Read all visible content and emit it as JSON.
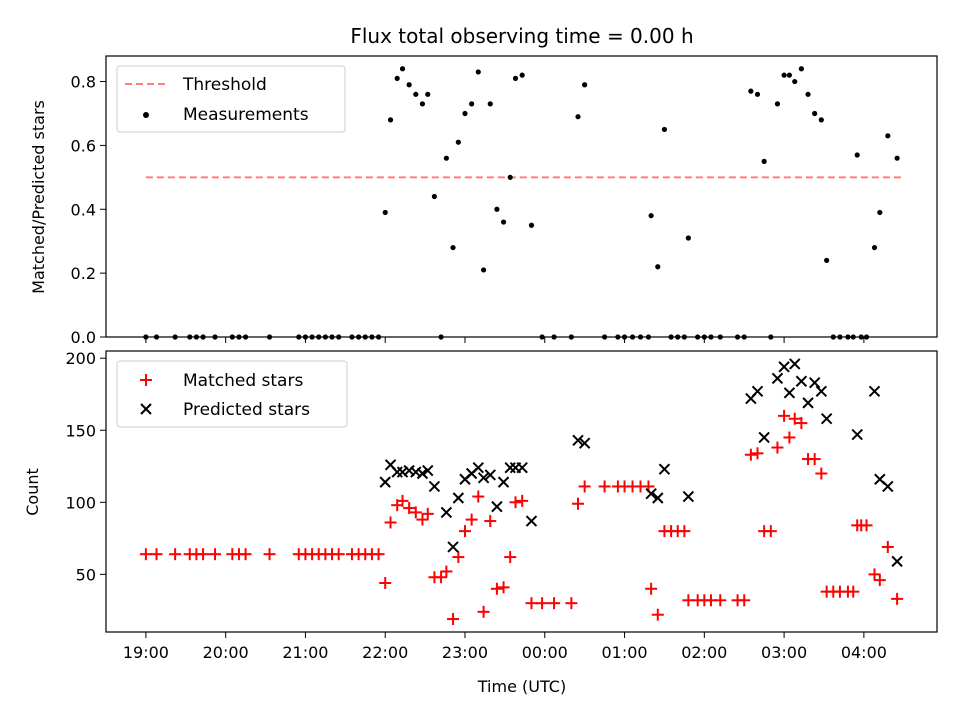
{
  "figure": {
    "title": "Flux total observing time = 0.00 h",
    "xlabel": "Time (UTC)"
  },
  "chart_data": [
    {
      "type": "scatter",
      "title": "Flux total observing time = 0.00 h",
      "xlabel": "Time (UTC)",
      "ylabel": "Matched/Predicted stars",
      "xlim": [
        "18:30",
        "04:55"
      ],
      "ylim": [
        0,
        0.88
      ],
      "x_ticks": [
        "19:00",
        "20:00",
        "21:00",
        "22:00",
        "23:00",
        "00:00",
        "01:00",
        "02:00",
        "03:00",
        "04:00"
      ],
      "y_ticks": [
        "0.0",
        "0.2",
        "0.4",
        "0.6",
        "0.8"
      ],
      "legend": "top-left",
      "series": [
        {
          "name": "Threshold",
          "kind": "dashed-line",
          "color": "#ff7f7f",
          "points": [
            [
              "19:00",
              0.5
            ],
            [
              "04:30",
              0.5
            ]
          ]
        },
        {
          "name": "Measurements",
          "kind": "dots",
          "color": "#000000",
          "points": [
            [
              "19:00",
              0
            ],
            [
              "19:08",
              0
            ],
            [
              "19:22",
              0
            ],
            [
              "19:33",
              0
            ],
            [
              "19:38",
              0
            ],
            [
              "19:43",
              0
            ],
            [
              "19:52",
              0
            ],
            [
              "20:05",
              0
            ],
            [
              "20:10",
              0
            ],
            [
              "20:15",
              0
            ],
            [
              "20:33",
              0
            ],
            [
              "20:55",
              0
            ],
            [
              "21:00",
              0
            ],
            [
              "21:05",
              0
            ],
            [
              "21:10",
              0
            ],
            [
              "21:15",
              0
            ],
            [
              "21:20",
              0
            ],
            [
              "21:25",
              0
            ],
            [
              "21:35",
              0
            ],
            [
              "21:40",
              0
            ],
            [
              "21:45",
              0
            ],
            [
              "21:50",
              0
            ],
            [
              "21:55",
              0
            ],
            [
              "22:00",
              0.39
            ],
            [
              "22:04",
              0.68
            ],
            [
              "22:09",
              0.81
            ],
            [
              "22:13",
              0.84
            ],
            [
              "22:18",
              0.79
            ],
            [
              "22:23",
              0.76
            ],
            [
              "22:28",
              0.73
            ],
            [
              "22:32",
              0.76
            ],
            [
              "22:37",
              0.44
            ],
            [
              "22:42",
              0
            ],
            [
              "22:46",
              0.56
            ],
            [
              "22:51",
              0.28
            ],
            [
              "22:55",
              0.61
            ],
            [
              "23:00",
              0.7
            ],
            [
              "23:05",
              0.73
            ],
            [
              "23:10",
              0.83
            ],
            [
              "23:14",
              0.21
            ],
            [
              "23:19",
              0.73
            ],
            [
              "23:24",
              0.4
            ],
            [
              "23:29",
              0.36
            ],
            [
              "23:34",
              0.5
            ],
            [
              "23:38",
              0.81
            ],
            [
              "23:43",
              0.82
            ],
            [
              "23:50",
              0.35
            ],
            [
              "23:58",
              0
            ],
            [
              "00:07",
              0
            ],
            [
              "00:20",
              0
            ],
            [
              "00:25",
              0.69
            ],
            [
              "00:30",
              0.79
            ],
            [
              "00:45",
              0
            ],
            [
              "00:55",
              0
            ],
            [
              "01:00",
              0
            ],
            [
              "01:06",
              0
            ],
            [
              "01:12",
              0
            ],
            [
              "01:18",
              0
            ],
            [
              "01:20",
              0.38
            ],
            [
              "01:25",
              0.22
            ],
            [
              "01:30",
              0.65
            ],
            [
              "01:35",
              0
            ],
            [
              "01:40",
              0
            ],
            [
              "01:45",
              0
            ],
            [
              "01:48",
              0.31
            ],
            [
              "01:55",
              0
            ],
            [
              "02:00",
              0
            ],
            [
              "02:05",
              0
            ],
            [
              "02:12",
              0
            ],
            [
              "02:25",
              0
            ],
            [
              "02:30",
              0
            ],
            [
              "02:35",
              0.77
            ],
            [
              "02:40",
              0.76
            ],
            [
              "02:45",
              0.55
            ],
            [
              "02:50",
              0
            ],
            [
              "02:55",
              0.73
            ],
            [
              "03:00",
              0.82
            ],
            [
              "03:04",
              0.82
            ],
            [
              "03:08",
              0.8
            ],
            [
              "03:13",
              0.84
            ],
            [
              "03:18",
              0.76
            ],
            [
              "03:23",
              0.7
            ],
            [
              "03:28",
              0.68
            ],
            [
              "03:32",
              0.24
            ],
            [
              "03:37",
              0
            ],
            [
              "03:42",
              0
            ],
            [
              "03:48",
              0
            ],
            [
              "03:52",
              0
            ],
            [
              "03:55",
              0.57
            ],
            [
              "03:58",
              0
            ],
            [
              "04:02",
              0
            ],
            [
              "04:08",
              0.28
            ],
            [
              "04:12",
              0.39
            ],
            [
              "04:18",
              0.63
            ],
            [
              "04:25",
              0.56
            ]
          ]
        }
      ]
    },
    {
      "type": "scatter",
      "xlabel": "Time (UTC)",
      "ylabel": "Count",
      "xlim": [
        "18:30",
        "04:55"
      ],
      "ylim": [
        10,
        205
      ],
      "x_ticks": [
        "19:00",
        "20:00",
        "21:00",
        "22:00",
        "23:00",
        "00:00",
        "01:00",
        "02:00",
        "03:00",
        "04:00"
      ],
      "y_ticks": [
        "50",
        "100",
        "150",
        "200"
      ],
      "legend": "top-left",
      "series": [
        {
          "name": "Matched stars",
          "marker": "plus",
          "color": "#ff0000",
          "points": [
            [
              "19:00",
              64
            ],
            [
              "19:08",
              64
            ],
            [
              "19:22",
              64
            ],
            [
              "19:33",
              64
            ],
            [
              "19:38",
              64
            ],
            [
              "19:43",
              64
            ],
            [
              "19:52",
              64
            ],
            [
              "20:05",
              64
            ],
            [
              "20:10",
              64
            ],
            [
              "20:15",
              64
            ],
            [
              "20:33",
              64
            ],
            [
              "20:55",
              64
            ],
            [
              "21:00",
              64
            ],
            [
              "21:05",
              64
            ],
            [
              "21:10",
              64
            ],
            [
              "21:15",
              64
            ],
            [
              "21:20",
              64
            ],
            [
              "21:25",
              64
            ],
            [
              "21:35",
              64
            ],
            [
              "21:40",
              64
            ],
            [
              "21:45",
              64
            ],
            [
              "21:50",
              64
            ],
            [
              "21:55",
              64
            ],
            [
              "22:00",
              44
            ],
            [
              "22:04",
              86
            ],
            [
              "22:09",
              98
            ],
            [
              "22:13",
              101
            ],
            [
              "22:18",
              96
            ],
            [
              "22:23",
              93
            ],
            [
              "22:28",
              88
            ],
            [
              "22:32",
              92
            ],
            [
              "22:37",
              48
            ],
            [
              "22:42",
              48
            ],
            [
              "22:46",
              52
            ],
            [
              "22:51",
              19
            ],
            [
              "22:55",
              62
            ],
            [
              "23:00",
              80
            ],
            [
              "23:05",
              88
            ],
            [
              "23:10",
              104
            ],
            [
              "23:14",
              24
            ],
            [
              "23:19",
              87
            ],
            [
              "23:24",
              40
            ],
            [
              "23:29",
              41
            ],
            [
              "23:34",
              62
            ],
            [
              "23:38",
              100
            ],
            [
              "23:43",
              101
            ],
            [
              "23:50",
              30
            ],
            [
              "23:58",
              30
            ],
            [
              "00:07",
              30
            ],
            [
              "00:20",
              30
            ],
            [
              "00:25",
              99
            ],
            [
              "00:30",
              111
            ],
            [
              "00:45",
              111
            ],
            [
              "00:55",
              111
            ],
            [
              "01:00",
              111
            ],
            [
              "01:06",
              111
            ],
            [
              "01:12",
              111
            ],
            [
              "01:18",
              111
            ],
            [
              "01:20",
              40
            ],
            [
              "01:25",
              22
            ],
            [
              "01:30",
              80
            ],
            [
              "01:35",
              80
            ],
            [
              "01:40",
              80
            ],
            [
              "01:45",
              80
            ],
            [
              "01:48",
              32
            ],
            [
              "01:55",
              32
            ],
            [
              "02:00",
              32
            ],
            [
              "02:05",
              32
            ],
            [
              "02:12",
              32
            ],
            [
              "02:25",
              32
            ],
            [
              "02:30",
              32
            ],
            [
              "02:35",
              133
            ],
            [
              "02:40",
              134
            ],
            [
              "02:45",
              80
            ],
            [
              "02:50",
              80
            ],
            [
              "02:55",
              138
            ],
            [
              "03:00",
              160
            ],
            [
              "03:04",
              145
            ],
            [
              "03:08",
              158
            ],
            [
              "03:13",
              155
            ],
            [
              "03:18",
              130
            ],
            [
              "03:23",
              130
            ],
            [
              "03:28",
              120
            ],
            [
              "03:32",
              38
            ],
            [
              "03:37",
              38
            ],
            [
              "03:42",
              38
            ],
            [
              "03:48",
              38
            ],
            [
              "03:52",
              38
            ],
            [
              "03:55",
              84
            ],
            [
              "03:58",
              84
            ],
            [
              "04:02",
              84
            ],
            [
              "04:08",
              50
            ],
            [
              "04:12",
              46
            ],
            [
              "04:18",
              69
            ],
            [
              "04:25",
              33
            ]
          ]
        },
        {
          "name": "Predicted stars",
          "marker": "x",
          "color": "#000000",
          "points": [
            [
              "22:00",
              114
            ],
            [
              "22:04",
              126
            ],
            [
              "22:09",
              121
            ],
            [
              "22:13",
              121
            ],
            [
              "22:18",
              122
            ],
            [
              "22:23",
              121
            ],
            [
              "22:28",
              120
            ],
            [
              "22:32",
              122
            ],
            [
              "22:37",
              111
            ],
            [
              "22:46",
              93
            ],
            [
              "22:51",
              69
            ],
            [
              "22:55",
              103
            ],
            [
              "23:00",
              116
            ],
            [
              "23:05",
              120
            ],
            [
              "23:10",
              124
            ],
            [
              "23:14",
              117
            ],
            [
              "23:19",
              119
            ],
            [
              "23:24",
              97
            ],
            [
              "23:29",
              114
            ],
            [
              "23:34",
              124
            ],
            [
              "23:38",
              124
            ],
            [
              "23:43",
              124
            ],
            [
              "23:50",
              87
            ],
            [
              "00:25",
              143
            ],
            [
              "00:30",
              141
            ],
            [
              "01:20",
              106
            ],
            [
              "01:25",
              103
            ],
            [
              "01:30",
              123
            ],
            [
              "01:48",
              104
            ],
            [
              "02:35",
              172
            ],
            [
              "02:40",
              177
            ],
            [
              "02:45",
              145
            ],
            [
              "02:55",
              186
            ],
            [
              "03:00",
              194
            ],
            [
              "03:04",
              176
            ],
            [
              "03:08",
              196
            ],
            [
              "03:13",
              184
            ],
            [
              "03:18",
              169
            ],
            [
              "03:23",
              183
            ],
            [
              "03:28",
              177
            ],
            [
              "03:32",
              158
            ],
            [
              "03:55",
              147
            ],
            [
              "04:08",
              177
            ],
            [
              "04:12",
              116
            ],
            [
              "04:18",
              111
            ],
            [
              "04:25",
              59
            ]
          ]
        }
      ]
    }
  ]
}
